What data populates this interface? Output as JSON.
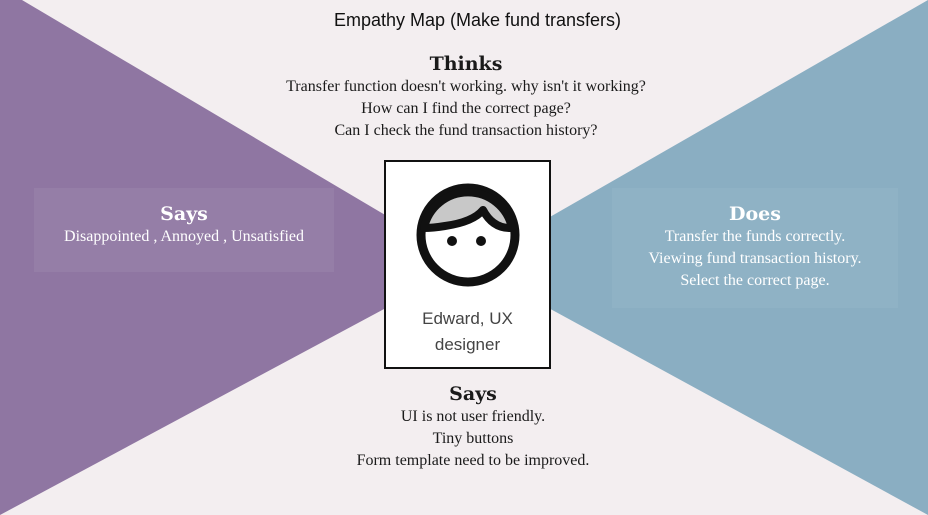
{
  "title": "Empathy Map (Make fund transfers)",
  "colors": {
    "background": "#f3eef0",
    "says_panel": "#8f76a2",
    "does_panel": "#8aaec2"
  },
  "thinks": {
    "heading": "Thinks",
    "lines": [
      "Transfer  function doesn't working.  why isn't it working?",
      "How can I find the correct page?",
      "Can I check the fund transaction history?"
    ]
  },
  "says_left": {
    "heading": "Says",
    "lines": [
      "Disappointed , Annoyed , Unsatisfied"
    ]
  },
  "does_right": {
    "heading": "Does",
    "lines": [
      "Transfer the funds correctly.",
      "Viewing fund transaction history.",
      "Select the correct page."
    ]
  },
  "says_bottom": {
    "heading": "Says",
    "lines": [
      "UI is not user friendly.",
      "Tiny buttons",
      "Form template need to be improved."
    ]
  },
  "persona": {
    "icon": "face-icon",
    "name_line1": "Edward, UX",
    "name_line2": "designer"
  }
}
